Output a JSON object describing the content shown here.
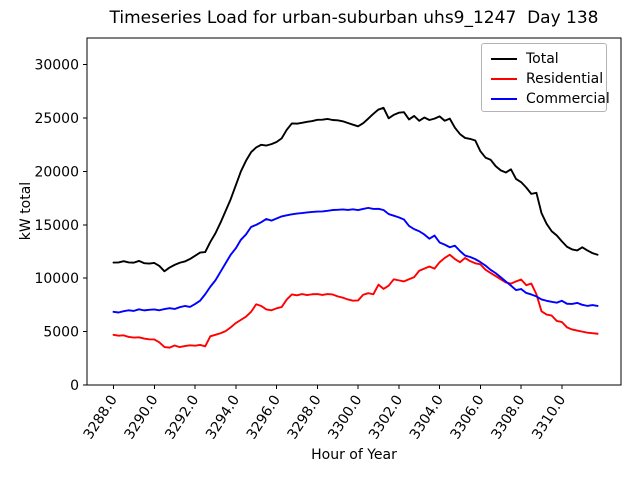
{
  "chart_data": {
    "type": "line",
    "title": "Timeseries Load for urban-suburban uhs9_1247  Day 138",
    "xlabel": "Hour of Year",
    "ylabel": "kW total",
    "xlim": [
      3286.7,
      3312.9
    ],
    "ylim": [
      0,
      32500
    ],
    "grid": false,
    "legend_position": "upper right",
    "x_ticks": [
      3288,
      3290,
      3292,
      3294,
      3296,
      3298,
      3300,
      3302,
      3304,
      3306,
      3308,
      3310
    ],
    "x_tick_labels": [
      "3288.0",
      "3290.0",
      "3292.0",
      "3294.0",
      "3296.0",
      "3298.0",
      "3300.0",
      "3302.0",
      "3304.0",
      "3306.0",
      "3308.0",
      "3310.0"
    ],
    "y_ticks": [
      0,
      5000,
      10000,
      15000,
      20000,
      25000,
      30000
    ],
    "y_tick_labels": [
      "0",
      "5000",
      "10000",
      "15000",
      "20000",
      "25000",
      "30000"
    ],
    "x": [
      3288.0,
      3288.25,
      3288.5,
      3288.75,
      3289.0,
      3289.25,
      3289.5,
      3289.75,
      3290.0,
      3290.25,
      3290.5,
      3290.75,
      3291.0,
      3291.25,
      3291.5,
      3291.75,
      3292.0,
      3292.25,
      3292.5,
      3292.75,
      3293.0,
      3293.25,
      3293.5,
      3293.75,
      3294.0,
      3294.25,
      3294.5,
      3294.75,
      3295.0,
      3295.25,
      3295.5,
      3295.75,
      3296.0,
      3296.25,
      3296.5,
      3296.75,
      3297.0,
      3297.25,
      3297.5,
      3297.75,
      3298.0,
      3298.25,
      3298.5,
      3298.75,
      3299.0,
      3299.25,
      3299.5,
      3299.75,
      3300.0,
      3300.25,
      3300.5,
      3300.75,
      3301.0,
      3301.25,
      3301.5,
      3301.75,
      3302.0,
      3302.25,
      3302.5,
      3302.75,
      3303.0,
      3303.25,
      3303.5,
      3303.75,
      3304.0,
      3304.25,
      3304.5,
      3304.75,
      3305.0,
      3305.25,
      3305.5,
      3305.75,
      3306.0,
      3306.25,
      3306.5,
      3306.75,
      3307.0,
      3307.25,
      3307.5,
      3307.75,
      3308.0,
      3308.25,
      3308.5,
      3308.75,
      3309.0,
      3309.25,
      3309.5,
      3309.75,
      3310.0,
      3310.25,
      3310.5,
      3310.75,
      3311.0,
      3311.25,
      3311.5,
      3311.75
    ],
    "series": [
      {
        "name": "Total",
        "color": "#000000",
        "values": [
          11470,
          11480,
          11600,
          11480,
          11460,
          11620,
          11410,
          11370,
          11430,
          11150,
          10650,
          11000,
          11250,
          11450,
          11570,
          11800,
          12100,
          12400,
          12450,
          13400,
          14200,
          15200,
          16300,
          17400,
          18700,
          20000,
          21000,
          21800,
          22250,
          22500,
          22430,
          22560,
          22760,
          23100,
          23900,
          24500,
          24480,
          24560,
          24650,
          24720,
          24840,
          24850,
          24920,
          24820,
          24790,
          24700,
          24540,
          24380,
          24230,
          24520,
          24950,
          25400,
          25800,
          25960,
          24980,
          25300,
          25500,
          25550,
          24870,
          25200,
          24740,
          25050,
          24820,
          24950,
          25160,
          24750,
          24950,
          24100,
          23500,
          23140,
          23050,
          22900,
          21900,
          21300,
          21100,
          20500,
          20100,
          19900,
          20200,
          19300,
          19000,
          18500,
          17900,
          18000,
          16100,
          15100,
          14400,
          14000,
          13450,
          12950,
          12700,
          12600,
          12900,
          12600,
          12350,
          12200
        ]
      },
      {
        "name": "Residential",
        "color": "#ff0000",
        "values": [
          4700,
          4620,
          4650,
          4500,
          4440,
          4470,
          4350,
          4280,
          4270,
          4000,
          3550,
          3500,
          3700,
          3550,
          3650,
          3720,
          3680,
          3750,
          3620,
          4560,
          4700,
          4850,
          5050,
          5400,
          5800,
          6100,
          6400,
          6850,
          7560,
          7400,
          7080,
          7000,
          7180,
          7300,
          8000,
          8480,
          8400,
          8520,
          8420,
          8500,
          8520,
          8430,
          8520,
          8480,
          8300,
          8180,
          8010,
          7900,
          7920,
          8450,
          8600,
          8500,
          9400,
          9000,
          9300,
          9900,
          9800,
          9700,
          9900,
          10100,
          10700,
          10900,
          11100,
          10900,
          11500,
          11900,
          12200,
          11800,
          11500,
          11900,
          11600,
          11400,
          11300,
          10800,
          10500,
          10200,
          9900,
          9600,
          9500,
          9700,
          9880,
          9350,
          9500,
          8500,
          6900,
          6600,
          6500,
          6000,
          5900,
          5400,
          5200,
          5100,
          5000,
          4900,
          4850,
          4800
        ]
      },
      {
        "name": "Commercial",
        "color": "#0000ff",
        "values": [
          6850,
          6790,
          6910,
          7000,
          6940,
          7090,
          6990,
          7040,
          7080,
          7000,
          7110,
          7190,
          7120,
          7290,
          7400,
          7310,
          7580,
          7900,
          8500,
          9200,
          9800,
          10600,
          11400,
          12200,
          12800,
          13600,
          14100,
          14800,
          15000,
          15250,
          15550,
          15400,
          15600,
          15790,
          15890,
          15990,
          16060,
          16100,
          16160,
          16210,
          16240,
          16260,
          16310,
          16390,
          16410,
          16440,
          16400,
          16450,
          16390,
          16490,
          16590,
          16490,
          16500,
          16390,
          16010,
          15860,
          15700,
          15500,
          14900,
          14600,
          14400,
          14100,
          13700,
          14000,
          13350,
          13150,
          12900,
          13050,
          12550,
          12120,
          11990,
          11790,
          11510,
          11190,
          10790,
          10480,
          10090,
          9690,
          9310,
          8890,
          8990,
          8620,
          8480,
          8300,
          8010,
          7890,
          7790,
          7710,
          7890,
          7610,
          7590,
          7690,
          7510,
          7410,
          7490,
          7400
        ]
      }
    ]
  }
}
